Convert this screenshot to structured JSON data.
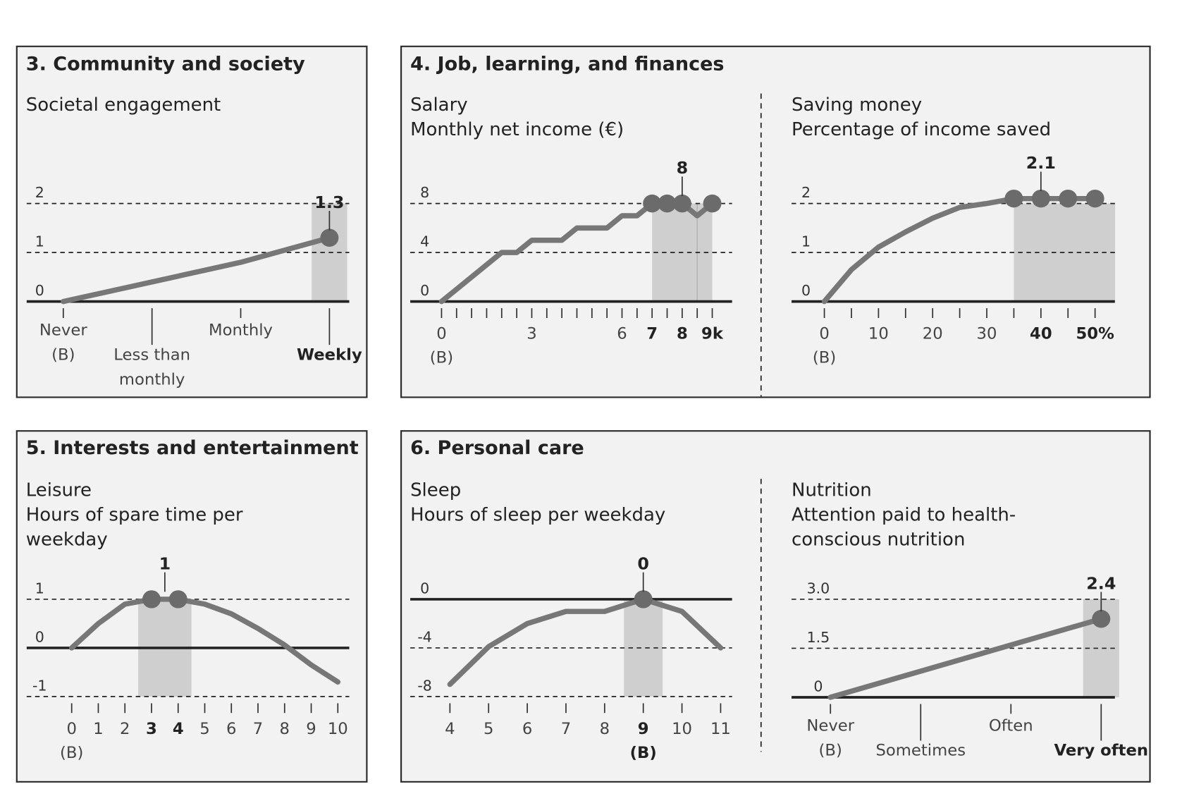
{
  "panels": [
    {
      "title": "3. Community and society"
    },
    {
      "title": "4. Job, learning, and finances"
    },
    {
      "title": "5. Interests and entertainment"
    },
    {
      "title": "6. Personal care"
    }
  ],
  "colors": {
    "series": "#777777",
    "dot": "#6b6b6b",
    "shade": "#cfcfcf",
    "panel_bg": "#f2f2f2"
  },
  "chart_data": [
    {
      "type": "line",
      "title": "Societal engagement",
      "subtitle": [],
      "x_type": "category",
      "categories": [
        [
          "Never",
          "(B)"
        ],
        [
          "Less than",
          "monthly"
        ],
        [
          "Monthly"
        ],
        [
          "Weekly"
        ]
      ],
      "bold_categories": [
        3
      ],
      "x": [
        0,
        1,
        2,
        3
      ],
      "y": [
        0,
        0.4,
        0.8,
        1.3
      ],
      "yticks": [
        {
          "v": 2,
          "label": "2"
        },
        {
          "v": 1,
          "label": "1"
        },
        {
          "v": 0,
          "label": "0"
        }
      ],
      "highlight_x": [
        3
      ],
      "shade": [
        2.8,
        3.2
      ],
      "annotation": {
        "x": 3,
        "label": "1.3"
      }
    },
    {
      "type": "line",
      "title": "Salary",
      "subtitle": [
        "Monthly net income (€)"
      ],
      "x_type": "numeric",
      "minor_step": 0.5,
      "xticks": [
        {
          "v": 0,
          "label": "0"
        },
        {
          "v": 3,
          "label": "3"
        },
        {
          "v": 6,
          "label": "6"
        },
        {
          "v": 7,
          "label": "7",
          "bold": true
        },
        {
          "v": 8,
          "label": "8",
          "bold": true
        },
        {
          "v": 9,
          "label": "9k",
          "bold": true
        }
      ],
      "baseline_x": 0,
      "baseline_label": "(B)",
      "baseline_bold": false,
      "x": [
        0,
        2,
        2.5,
        3,
        4,
        4.5,
        5.5,
        6,
        6.5,
        7,
        7.5,
        8,
        8.5,
        9
      ],
      "y": [
        0,
        4,
        4,
        5,
        5,
        6,
        6,
        7,
        7,
        8,
        8,
        8,
        7,
        8
      ],
      "yticks": [
        {
          "v": 8,
          "label": "8"
        },
        {
          "v": 4,
          "label": "4"
        },
        {
          "v": 0,
          "label": "0"
        }
      ],
      "highlight_x": [
        7,
        7.5,
        8,
        9
      ],
      "shade": [
        7,
        9
      ],
      "shade_split": 8.5,
      "annotation": {
        "x": 8,
        "label": "8"
      }
    },
    {
      "type": "line",
      "title": "Saving money",
      "subtitle": [
        "Percentage of income saved"
      ],
      "x_type": "numeric",
      "minor_step": 5,
      "xticks": [
        {
          "v": 0,
          "label": "0"
        },
        {
          "v": 10,
          "label": "10"
        },
        {
          "v": 20,
          "label": "20"
        },
        {
          "v": 30,
          "label": "30"
        },
        {
          "v": 40,
          "label": "40",
          "bold": true
        },
        {
          "v": 50,
          "label": "50%",
          "bold": true
        }
      ],
      "baseline_x": 0,
      "baseline_label": "(B)",
      "baseline_bold": false,
      "x": [
        0,
        5,
        10,
        15,
        20,
        25,
        30,
        35,
        40,
        45,
        50
      ],
      "y": [
        0,
        0.65,
        1.11,
        1.42,
        1.7,
        1.92,
        2.0,
        2.1,
        2.1,
        2.1,
        2.1
      ],
      "yticks": [
        {
          "v": 2,
          "label": "2"
        },
        {
          "v": 1,
          "label": "1"
        },
        {
          "v": 0,
          "label": "0"
        }
      ],
      "highlight_x": [
        35,
        40,
        45,
        50
      ],
      "shade": [
        35,
        53.7
      ],
      "annotation": {
        "x": 40,
        "label": "2.1"
      }
    },
    {
      "type": "line",
      "title": "Leisure",
      "subtitle": [
        "Hours of spare time per",
        "weekday"
      ],
      "x_type": "numeric",
      "minor_step": 1,
      "xticks": [
        {
          "v": 0,
          "label": "0"
        },
        {
          "v": 1,
          "label": "1"
        },
        {
          "v": 2,
          "label": "2"
        },
        {
          "v": 3,
          "label": "3",
          "bold": true
        },
        {
          "v": 4,
          "label": "4",
          "bold": true
        },
        {
          "v": 5,
          "label": "5"
        },
        {
          "v": 6,
          "label": "6"
        },
        {
          "v": 7,
          "label": "7"
        },
        {
          "v": 8,
          "label": "8"
        },
        {
          "v": 9,
          "label": "9"
        },
        {
          "v": 10,
          "label": "10"
        }
      ],
      "baseline_x": 0,
      "baseline_label": "(B)",
      "baseline_bold": false,
      "x": [
        0,
        1,
        2,
        3,
        4,
        5,
        6,
        7,
        8,
        9,
        10
      ],
      "y": [
        0,
        0.5,
        0.9,
        1,
        1,
        0.9,
        0.7,
        0.4,
        0.06,
        -0.35,
        -0.7
      ],
      "yticks": [
        {
          "v": 1,
          "label": "1"
        },
        {
          "v": 0,
          "label": "0"
        },
        {
          "v": -1,
          "label": "-1"
        }
      ],
      "highlight_x": [
        3,
        4
      ],
      "shade": [
        2.5,
        4.5
      ],
      "annotation": {
        "x": 3.5,
        "label": "1"
      }
    },
    {
      "type": "line",
      "title": "Sleep",
      "subtitle": [
        "Hours of sleep per weekday"
      ],
      "x_type": "numeric",
      "minor_step": 1,
      "xticks": [
        {
          "v": 4,
          "label": "4"
        },
        {
          "v": 5,
          "label": "5"
        },
        {
          "v": 6,
          "label": "6"
        },
        {
          "v": 7,
          "label": "7"
        },
        {
          "v": 8,
          "label": "8"
        },
        {
          "v": 9,
          "label": "9",
          "bold": true
        },
        {
          "v": 10,
          "label": "10"
        },
        {
          "v": 11,
          "label": "11"
        }
      ],
      "baseline_x": 9,
      "baseline_label": "(B)",
      "baseline_bold": true,
      "x": [
        4,
        5,
        6,
        7,
        8,
        9,
        10,
        11
      ],
      "y": [
        -7.0,
        -3.9,
        -2,
        -1,
        -1,
        0,
        -1,
        -4
      ],
      "yticks": [
        {
          "v": 0,
          "label": "0"
        },
        {
          "v": -4,
          "label": "-4"
        },
        {
          "v": -8,
          "label": "-8"
        }
      ],
      "highlight_x": [
        9
      ],
      "shade": [
        8.5,
        9.5
      ],
      "annotation": {
        "x": 9,
        "label": "0"
      }
    },
    {
      "type": "line",
      "title": "Nutrition",
      "subtitle": [
        "Attention paid to health-",
        "conscious nutrition"
      ],
      "x_type": "category",
      "categories": [
        [
          "Never",
          "(B)"
        ],
        [
          "Sometimes"
        ],
        [
          "Often"
        ],
        [
          "Very often"
        ]
      ],
      "bold_categories": [
        3
      ],
      "x": [
        0,
        1,
        2,
        3
      ],
      "y": [
        0,
        0.8,
        1.6,
        2.4
      ],
      "yticks": [
        {
          "v": 3,
          "label": "3.0"
        },
        {
          "v": 1.5,
          "label": "1.5"
        },
        {
          "v": 0,
          "label": "0"
        }
      ],
      "highlight_x": [
        3
      ],
      "shade": [
        2.8,
        3.2
      ],
      "annotation": {
        "x": 3,
        "label": "2.4"
      }
    }
  ]
}
